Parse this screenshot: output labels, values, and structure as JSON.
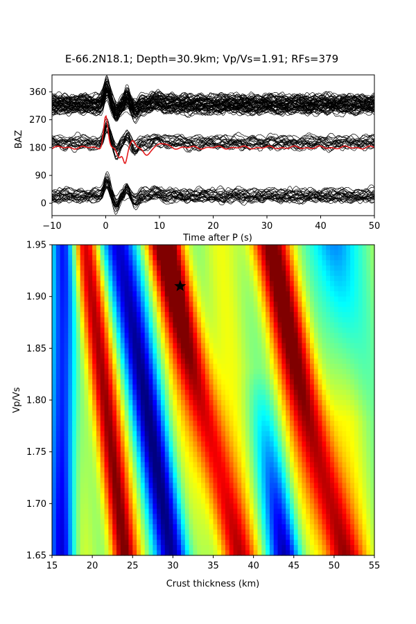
{
  "title": "E-66.2N18.1; Depth=30.9km; Vp/Vs=1.91; RFs=379",
  "chart_data": [
    {
      "type": "line",
      "name": "waveforms",
      "xlabel": "Time after P (s)",
      "ylabel": "BAZ",
      "xlim": [
        -10,
        50
      ],
      "ylim": [
        -40,
        415
      ],
      "xticks": [
        -10,
        0,
        10,
        20,
        30,
        40,
        50
      ],
      "yticks": [
        0,
        90,
        180,
        270,
        360
      ],
      "trace_color": "#000000",
      "stack_color": "#e31a1c",
      "groups": [
        {
          "baz_center": 320,
          "baz_spread": 55,
          "count": 60
        },
        {
          "baz_center": 200,
          "baz_spread": 35,
          "count": 20
        },
        {
          "baz_center": 25,
          "baz_spread": 35,
          "count": 25
        }
      ],
      "stack": {
        "baz": 180,
        "peak_time": 0.8,
        "peak_amp": 100
      }
    },
    {
      "type": "heatmap",
      "name": "h-k-stacking",
      "xlabel": "Crust thickness (km)",
      "ylabel": "Vp/Vs",
      "xlim": [
        15,
        55
      ],
      "ylim": [
        1.65,
        1.95
      ],
      "xticks": [
        15,
        20,
        25,
        30,
        35,
        40,
        45,
        50,
        55
      ],
      "yticks": [
        1.65,
        1.7,
        1.75,
        1.8,
        1.85,
        1.9,
        1.95
      ],
      "colormap": "jet",
      "best": {
        "H": 30.9,
        "k": 1.91
      }
    }
  ]
}
